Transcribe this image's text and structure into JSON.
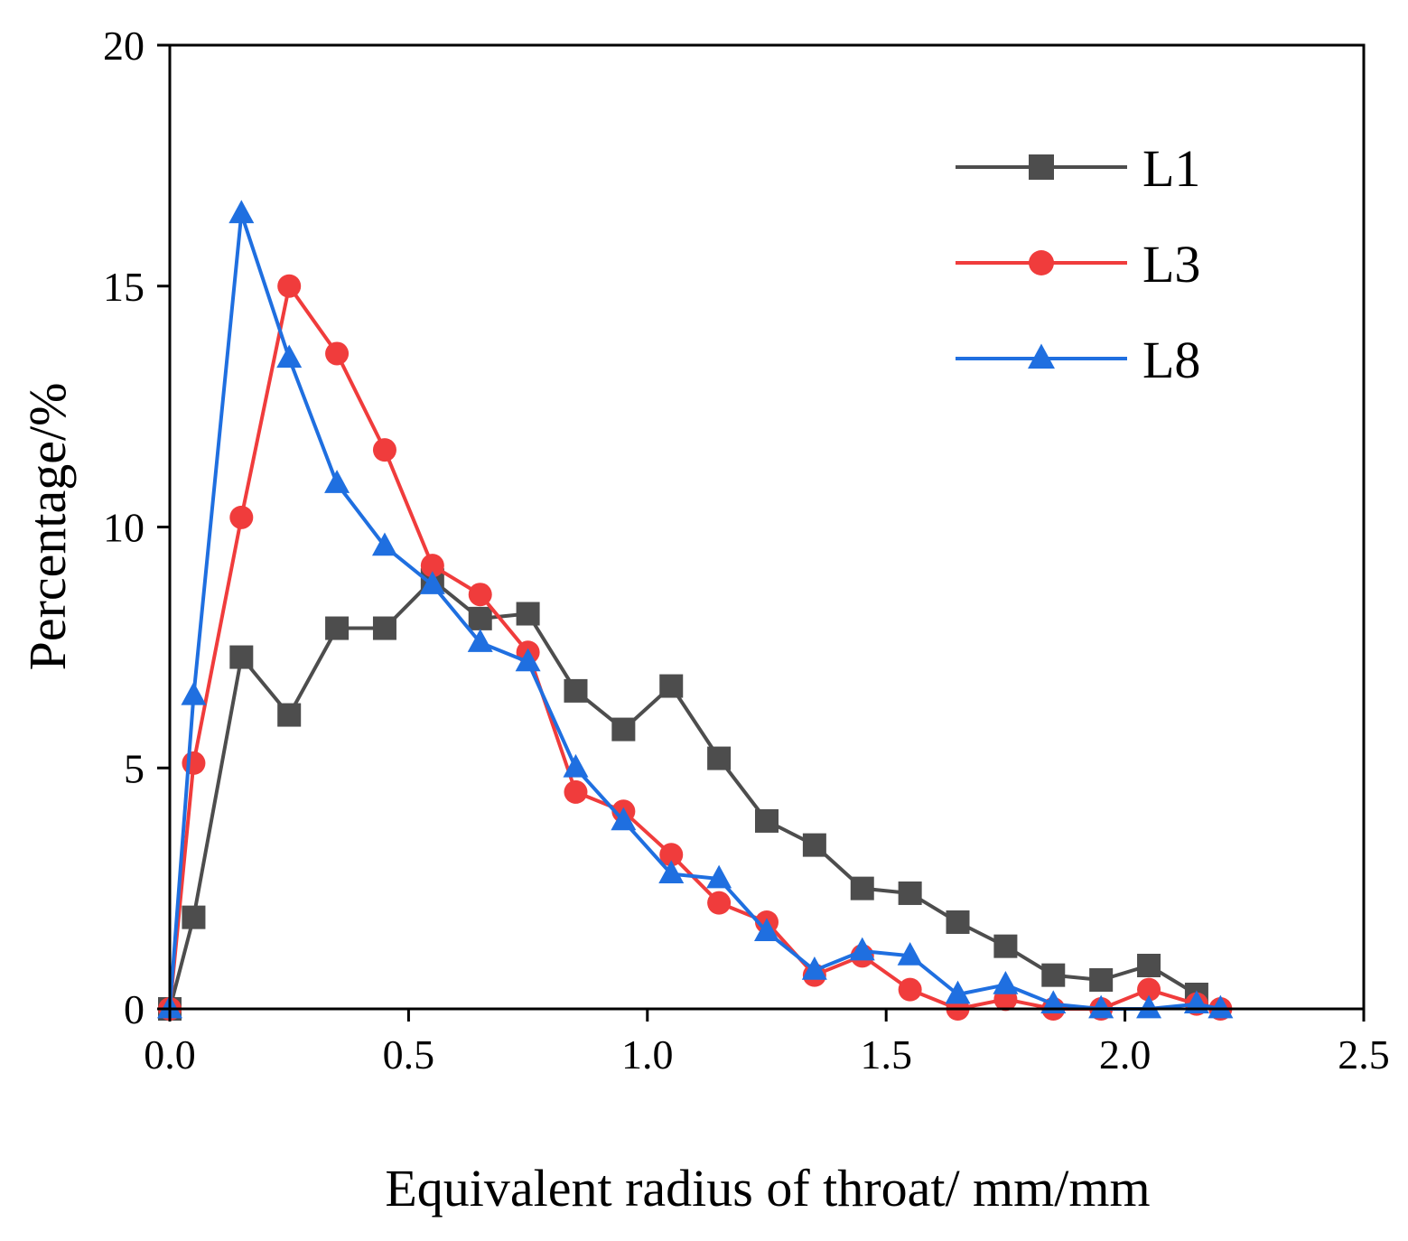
{
  "chart_data": {
    "type": "line",
    "title": "",
    "xlabel": "Equivalent radius of throat/ mm/mm",
    "ylabel": "Percentage/%",
    "xlim": [
      0,
      2.5
    ],
    "ylim": [
      0,
      20
    ],
    "xticks": [
      0,
      0.5,
      1.0,
      1.5,
      2.0,
      2.5
    ],
    "xtick_labels": [
      "0.0",
      "0.5",
      "1.0",
      "1.5",
      "2.0",
      "2.5"
    ],
    "yticks": [
      0,
      5,
      10,
      15,
      20
    ],
    "ytick_labels": [
      "0",
      "5",
      "10",
      "15",
      "20"
    ],
    "grid": false,
    "legend_position": "top-right",
    "series": [
      {
        "name": "L1",
        "color": "#4d4d4d",
        "marker": "square",
        "x": [
          0,
          0.05,
          0.15,
          0.25,
          0.35,
          0.45,
          0.55,
          0.65,
          0.75,
          0.85,
          0.95,
          1.05,
          1.15,
          1.25,
          1.35,
          1.45,
          1.55,
          1.65,
          1.75,
          1.85,
          1.95,
          2.05,
          2.15
        ],
        "values": [
          0,
          1.9,
          7.3,
          6.1,
          7.9,
          7.9,
          8.9,
          8.1,
          8.2,
          6.6,
          5.8,
          6.7,
          5.2,
          3.9,
          3.4,
          2.5,
          2.4,
          1.8,
          1.3,
          0.7,
          0.6,
          0.9,
          0.3
        ]
      },
      {
        "name": "L3",
        "color": "#f03c3c",
        "marker": "circle",
        "x": [
          0,
          0.05,
          0.15,
          0.25,
          0.35,
          0.45,
          0.55,
          0.65,
          0.75,
          0.85,
          0.95,
          1.05,
          1.15,
          1.25,
          1.35,
          1.45,
          1.55,
          1.65,
          1.75,
          1.85,
          1.95,
          2.05,
          2.15,
          2.2
        ],
        "values": [
          0,
          5.1,
          10.2,
          15.0,
          13.6,
          11.6,
          9.2,
          8.6,
          7.4,
          4.5,
          4.1,
          3.2,
          2.2,
          1.8,
          0.7,
          1.1,
          0.4,
          0.0,
          0.2,
          0.0,
          0.0,
          0.4,
          0.1,
          0.0
        ]
      },
      {
        "name": "L8",
        "color": "#1f6fe0",
        "marker": "triangle",
        "x": [
          0,
          0.05,
          0.15,
          0.25,
          0.35,
          0.45,
          0.55,
          0.65,
          0.75,
          0.85,
          0.95,
          1.05,
          1.15,
          1.25,
          1.35,
          1.45,
          1.55,
          1.65,
          1.75,
          1.85,
          1.95,
          2.05,
          2.15,
          2.2
        ],
        "values": [
          0,
          6.5,
          16.5,
          13.5,
          10.9,
          9.6,
          8.8,
          7.6,
          7.2,
          5.0,
          3.9,
          2.8,
          2.7,
          1.6,
          0.8,
          1.2,
          1.1,
          0.3,
          0.5,
          0.1,
          0.0,
          0.0,
          0.1,
          0.0
        ]
      }
    ]
  }
}
